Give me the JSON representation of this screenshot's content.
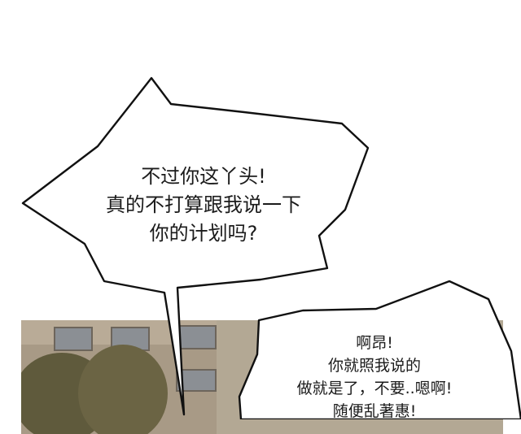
{
  "bubble_1": {
    "lines": [
      "不过你这丫头!",
      "真的不打算跟我说一下",
      "你的计划吗?"
    ]
  },
  "bubble_2": {
    "lines": [
      "啊昂!",
      "你就照我说的",
      "做就是了，不要..嗯啊!",
      "随便乱著惠!"
    ]
  },
  "colors": {
    "background": "#ffffff",
    "scene_wall": "#a89a86",
    "window_glass": "#8b8f94",
    "tree": "#5f5a3c",
    "sign": "#3f8fd0",
    "text": "#1b1b1b"
  }
}
